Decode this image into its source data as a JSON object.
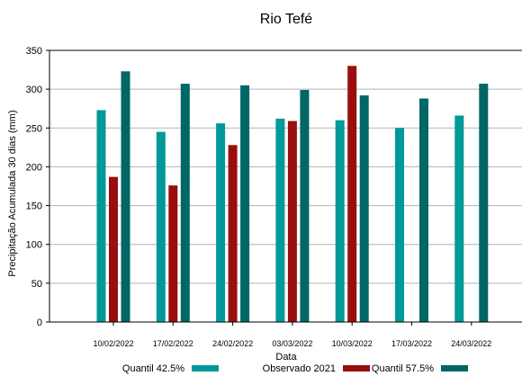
{
  "chart_data": {
    "type": "bar",
    "title": "Rio Tefé",
    "xlabel": "Data",
    "ylabel": "Precipitação Acumulada 30 dias (mm)",
    "ylim": [
      0,
      350
    ],
    "yticks": [
      "0",
      "50",
      "100",
      "150",
      "200",
      "250",
      "300",
      "350"
    ],
    "grid": true,
    "legend_position": "bottom",
    "categories": [
      "10/02/2022",
      "17/02/2022",
      "24/02/2022",
      "03/03/2022",
      "10/03/2022",
      "17/03/2022",
      "24/03/2022"
    ],
    "series": [
      {
        "name": "Quantil 42.5%",
        "color": "#009999",
        "values": [
          273,
          245,
          256,
          262,
          260,
          250,
          266
        ]
      },
      {
        "name": "Observado 2021",
        "color": "#990f0f",
        "values": [
          187,
          176,
          228,
          259,
          330,
          null,
          null
        ]
      },
      {
        "name": "Quantil 57.5%",
        "color": "#006666",
        "values": [
          323,
          307,
          305,
          299,
          292,
          288,
          307
        ]
      }
    ]
  }
}
